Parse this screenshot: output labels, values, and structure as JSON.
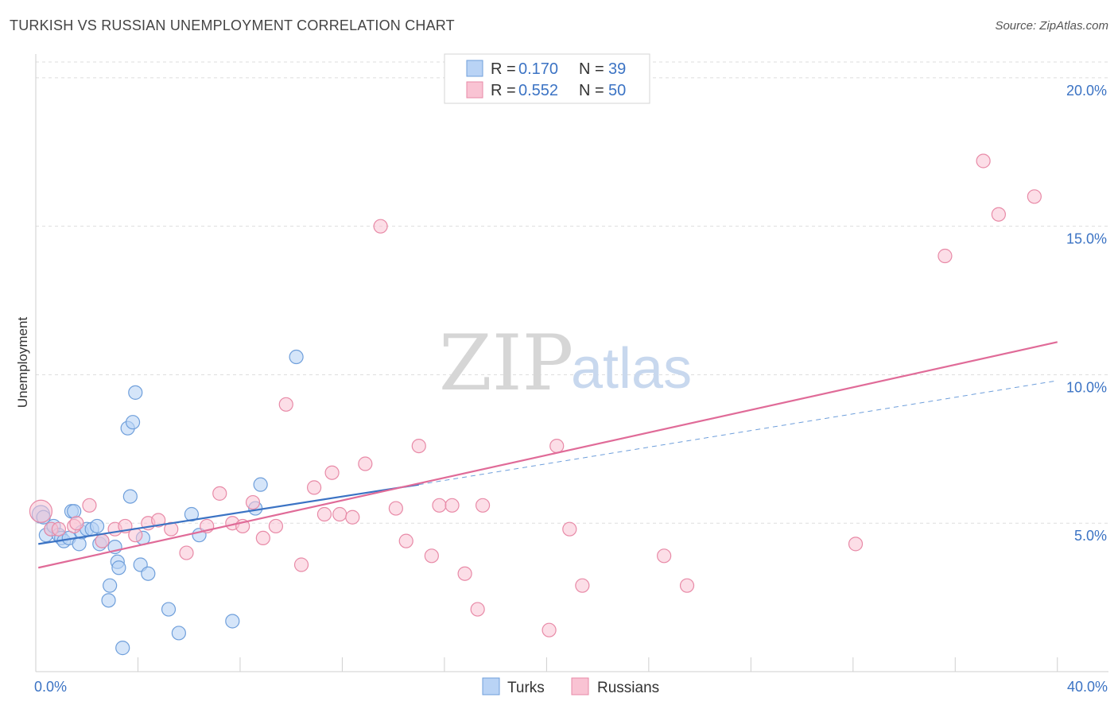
{
  "title": "TURKISH VS RUSSIAN UNEMPLOYMENT CORRELATION CHART",
  "source": "Source: ZipAtlas.com",
  "watermark": {
    "zip": "ZIP",
    "atlas": "atlas"
  },
  "legend": {
    "r_label": "R =",
    "n_label": "N =",
    "rows": [
      {
        "name": "Turks",
        "r": "0.170",
        "n": "39",
        "fill": "#b9d3f5",
        "stroke": "#6f9fdb"
      },
      {
        "name": "Russians",
        "r": "0.552",
        "n": "50",
        "fill": "#f9c3d3",
        "stroke": "#e88aa7"
      }
    ]
  },
  "chart_data": {
    "type": "scatter",
    "title": "TURKISH VS RUSSIAN UNEMPLOYMENT CORRELATION CHART",
    "xlabel": "",
    "ylabel": "Unemployment",
    "xlim": [
      0,
      42
    ],
    "ylim": [
      0,
      20.8
    ],
    "x_tick_labels": [
      {
        "value": 0,
        "label": "0.0%"
      },
      {
        "value": 40,
        "label": "40.0%"
      }
    ],
    "y_tick_labels": [
      {
        "value": 5,
        "label": "5.0%"
      },
      {
        "value": 10,
        "label": "10.0%"
      },
      {
        "value": 15,
        "label": "15.0%"
      },
      {
        "value": 20,
        "label": "20.0%"
      }
    ],
    "x_minor_ticks": [
      4,
      8,
      12,
      16,
      20,
      24,
      28,
      32,
      36,
      40
    ],
    "grid": true,
    "legend_position": "top-center",
    "series": [
      {
        "name": "Turks",
        "color": "#3b73c4",
        "fill": "#b9d3f5",
        "stroke": "#6f9fdb",
        "points": [
          [
            0.2,
            5.3
          ],
          [
            0.3,
            5.2
          ],
          [
            0.4,
            4.6
          ],
          [
            0.6,
            4.8
          ],
          [
            0.7,
            4.9
          ],
          [
            0.9,
            4.6
          ],
          [
            1.0,
            4.5
          ],
          [
            1.1,
            4.4
          ],
          [
            1.3,
            4.5
          ],
          [
            1.4,
            5.4
          ],
          [
            1.5,
            5.4
          ],
          [
            1.7,
            4.3
          ],
          [
            1.8,
            4.7
          ],
          [
            2.0,
            4.8
          ],
          [
            2.2,
            4.8
          ],
          [
            2.4,
            4.9
          ],
          [
            2.5,
            4.3
          ],
          [
            2.6,
            4.4
          ],
          [
            2.9,
            2.9
          ],
          [
            2.85,
            2.4
          ],
          [
            3.1,
            4.2
          ],
          [
            3.2,
            3.7
          ],
          [
            3.25,
            3.5
          ],
          [
            3.4,
            0.8
          ],
          [
            3.6,
            8.2
          ],
          [
            3.8,
            8.4
          ],
          [
            3.9,
            9.4
          ],
          [
            3.7,
            5.9
          ],
          [
            4.1,
            3.6
          ],
          [
            4.2,
            4.5
          ],
          [
            4.4,
            3.3
          ],
          [
            5.2,
            2.1
          ],
          [
            5.6,
            1.3
          ],
          [
            6.1,
            5.3
          ],
          [
            6.4,
            4.6
          ],
          [
            7.7,
            1.7
          ],
          [
            8.6,
            5.5
          ],
          [
            8.8,
            6.3
          ],
          [
            10.2,
            10.6
          ]
        ],
        "trend": {
          "x": [
            0.1,
            15.0
          ],
          "y": [
            4.3,
            6.3
          ],
          "dashed_to": [
            40.0,
            9.8
          ]
        }
      },
      {
        "name": "Russians",
        "color": "#e06b98",
        "fill": "#f9c3d3",
        "stroke": "#e88aa7",
        "points": [
          [
            0.2,
            5.4
          ],
          [
            0.6,
            4.8
          ],
          [
            0.9,
            4.8
          ],
          [
            1.5,
            4.9
          ],
          [
            1.6,
            5.0
          ],
          [
            2.1,
            5.6
          ],
          [
            2.6,
            4.4
          ],
          [
            3.1,
            4.8
          ],
          [
            3.5,
            4.9
          ],
          [
            3.9,
            4.6
          ],
          [
            4.4,
            5.0
          ],
          [
            4.8,
            5.1
          ],
          [
            5.3,
            4.8
          ],
          [
            5.9,
            4.0
          ],
          [
            6.7,
            4.9
          ],
          [
            7.2,
            6.0
          ],
          [
            7.7,
            5.0
          ],
          [
            8.1,
            4.9
          ],
          [
            8.5,
            5.7
          ],
          [
            8.9,
            4.5
          ],
          [
            9.4,
            4.9
          ],
          [
            9.8,
            9.0
          ],
          [
            10.4,
            3.6
          ],
          [
            10.9,
            6.2
          ],
          [
            11.3,
            5.3
          ],
          [
            11.6,
            6.7
          ],
          [
            11.9,
            5.3
          ],
          [
            12.4,
            5.2
          ],
          [
            12.9,
            7.0
          ],
          [
            13.5,
            15.0
          ],
          [
            14.1,
            5.5
          ],
          [
            14.5,
            4.4
          ],
          [
            15.0,
            7.6
          ],
          [
            15.5,
            3.9
          ],
          [
            15.8,
            5.6
          ],
          [
            16.3,
            5.6
          ],
          [
            16.8,
            3.3
          ],
          [
            17.3,
            2.1
          ],
          [
            17.5,
            5.6
          ],
          [
            20.1,
            1.4
          ],
          [
            20.4,
            7.6
          ],
          [
            20.9,
            4.8
          ],
          [
            21.4,
            2.9
          ],
          [
            24.6,
            3.9
          ],
          [
            25.5,
            2.9
          ],
          [
            32.1,
            4.3
          ],
          [
            35.6,
            14.0
          ],
          [
            37.1,
            17.2
          ],
          [
            37.7,
            15.4
          ],
          [
            39.1,
            16.0
          ]
        ],
        "trend": {
          "x": [
            0.1,
            40.0
          ],
          "y": [
            3.5,
            11.1
          ]
        }
      }
    ]
  }
}
